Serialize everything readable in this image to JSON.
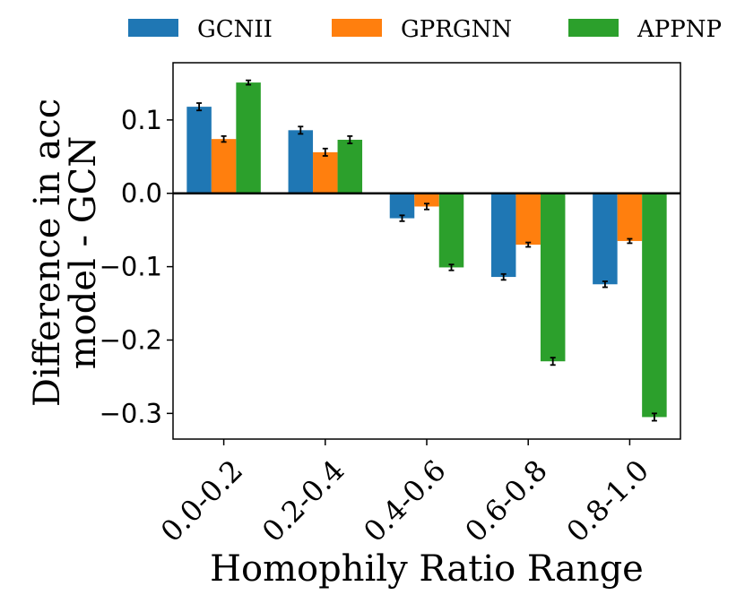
{
  "chart_data": {
    "type": "bar",
    "categories": [
      "0.0-0.2",
      "0.2-0.4",
      "0.4-0.6",
      "0.6-0.8",
      "0.8-1.0"
    ],
    "series": [
      {
        "name": "GCNII",
        "color": "#1f77b4",
        "values": [
          0.118,
          0.086,
          -0.034,
          -0.114,
          -0.124
        ],
        "errors": [
          0.005,
          0.005,
          0.004,
          0.004,
          0.004
        ]
      },
      {
        "name": "GPRGNN",
        "color": "#ff7f0e",
        "values": [
          0.074,
          0.056,
          -0.018,
          -0.07,
          -0.065
        ],
        "errors": [
          0.004,
          0.005,
          0.004,
          0.003,
          0.003
        ]
      },
      {
        "name": "APPNP",
        "color": "#2ca02c",
        "values": [
          0.151,
          0.073,
          -0.101,
          -0.229,
          -0.305
        ],
        "errors": [
          0.003,
          0.005,
          0.004,
          0.005,
          0.005
        ]
      }
    ],
    "xlabel": "Homophily Ratio Range",
    "ylabel_lines": [
      "Difference in acc",
      "model - GCN"
    ],
    "ylim": [
      -0.335,
      0.178
    ],
    "yticks": [
      0.1,
      0.0,
      -0.1,
      -0.2,
      -0.3
    ],
    "ytick_labels": [
      "0.1",
      "0.0",
      "−0.1",
      "−0.2",
      "−0.3"
    ],
    "zero_line": true,
    "legend_position": "top, above plot"
  }
}
